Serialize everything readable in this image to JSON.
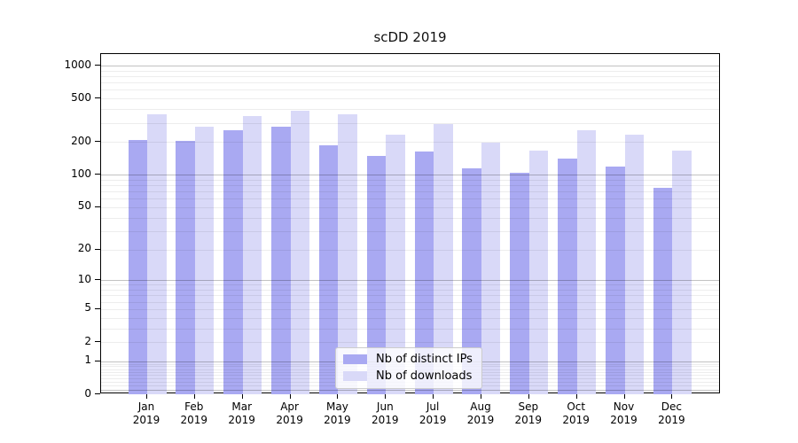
{
  "figure": {
    "title": "scDD 2019"
  },
  "chart_data": {
    "type": "bar",
    "title": "scDD 2019",
    "categories": [
      "Jan 2019",
      "Feb 2019",
      "Mar 2019",
      "Apr 2019",
      "May 2019",
      "Jun 2019",
      "Jul 2019",
      "Aug 2019",
      "Sep 2019",
      "Oct 2019",
      "Nov 2019",
      "Dec 2019"
    ],
    "x_tick_months": [
      "Jan",
      "Feb",
      "Mar",
      "Apr",
      "May",
      "Jun",
      "Jul",
      "Aug",
      "Sep",
      "Oct",
      "Nov",
      "Dec"
    ],
    "x_tick_year": "2019",
    "series": [
      {
        "name": "Nb of distinct IPs",
        "color": "#a9a9f2",
        "values": [
          210,
          203,
          258,
          276,
          187,
          149,
          165,
          114,
          104,
          140,
          119,
          75
        ]
      },
      {
        "name": "Nb of downloads",
        "color": "#d9d9f8",
        "values": [
          360,
          276,
          345,
          385,
          358,
          234,
          292,
          197,
          166,
          255,
          234,
          166
        ]
      }
    ],
    "xlabel": "",
    "ylabel": "",
    "yscale": "log1p",
    "ylim": [
      0,
      1275
    ],
    "y_ticks": [
      1000,
      500,
      200,
      100,
      50,
      20,
      10,
      5,
      2,
      1,
      0
    ],
    "grid": true,
    "grid_major_values": [
      0.1,
      1,
      10,
      100,
      1000
    ],
    "grid_minor_bases": [
      0.1,
      1,
      10,
      100
    ],
    "legend_position": "bottom-center-inside",
    "colors": {
      "major_gridline": "rgba(0,0,0,0.24)",
      "minor_gridline": "rgba(0,0,0,0.07)",
      "axis": "#000000",
      "text": "#000000",
      "legend_border": "#cccccc"
    }
  }
}
